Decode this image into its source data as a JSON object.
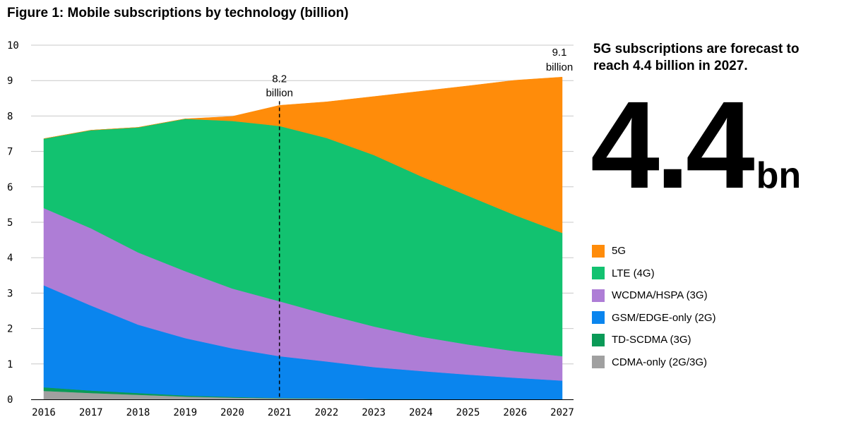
{
  "title": "Figure 1: Mobile subscriptions by technology (billion)",
  "headline": "5G subscriptions are forecast to reach 4.4 billion in 2027.",
  "big_number": {
    "value": "4.4",
    "unit": "bn"
  },
  "colors": {
    "5G": "#ff8c0a",
    "LTE (4G)": "#12c270",
    "WCDMA/HSPA (3G)": "#ae7dd6",
    "GSM/EDGE-only (2G)": "#0a85ee",
    "TD-SCDMA (3G)": "#0a9a57",
    "CDMA-only (2G/3G)": "#a0a0a0"
  },
  "chart_data": {
    "type": "area",
    "stacked": true,
    "x": [
      2016,
      2017,
      2018,
      2019,
      2020,
      2021,
      2022,
      2023,
      2024,
      2025,
      2026,
      2027
    ],
    "ylim": [
      0,
      10
    ],
    "yticks": [
      0,
      1,
      2,
      3,
      4,
      5,
      6,
      7,
      8,
      9,
      10
    ],
    "grid": "horizontal",
    "series": [
      {
        "name": "CDMA-only (2G/3G)",
        "values": [
          0.24,
          0.18,
          0.13,
          0.08,
          0.05,
          0.03,
          0.02,
          0.01,
          0.01,
          0.0,
          0.0,
          0.0
        ]
      },
      {
        "name": "TD-SCDMA (3G)",
        "values": [
          0.1,
          0.07,
          0.05,
          0.03,
          0.02,
          0.01,
          0.01,
          0.0,
          0.0,
          0.0,
          0.0,
          0.0
        ]
      },
      {
        "name": "GSM/EDGE-only (2G)",
        "values": [
          2.88,
          2.4,
          1.93,
          1.62,
          1.37,
          1.18,
          1.04,
          0.9,
          0.79,
          0.7,
          0.61,
          0.53
        ]
      },
      {
        "name": "WCDMA/HSPA (3G)",
        "values": [
          2.18,
          2.18,
          2.04,
          1.89,
          1.69,
          1.55,
          1.33,
          1.15,
          0.97,
          0.85,
          0.75,
          0.69
        ]
      },
      {
        "name": "LTE (4G)",
        "values": [
          1.96,
          2.77,
          3.53,
          4.3,
          4.73,
          4.95,
          4.98,
          4.84,
          4.53,
          4.2,
          3.84,
          3.48
        ]
      },
      {
        "name": "5G",
        "values": [
          0.0,
          0.0,
          0.0,
          0.0,
          0.13,
          0.58,
          1.02,
          1.65,
          2.4,
          3.1,
          3.81,
          4.4
        ]
      }
    ],
    "annotations": [
      {
        "x": 2021,
        "value": "8.2",
        "label": "billion",
        "line": "dashed"
      },
      {
        "x": 2027,
        "value": "9.1",
        "label": "billion"
      }
    ]
  },
  "legend_order": [
    "5G",
    "LTE (4G)",
    "WCDMA/HSPA (3G)",
    "GSM/EDGE-only (2G)",
    "TD-SCDMA (3G)",
    "CDMA-only (2G/3G)"
  ]
}
